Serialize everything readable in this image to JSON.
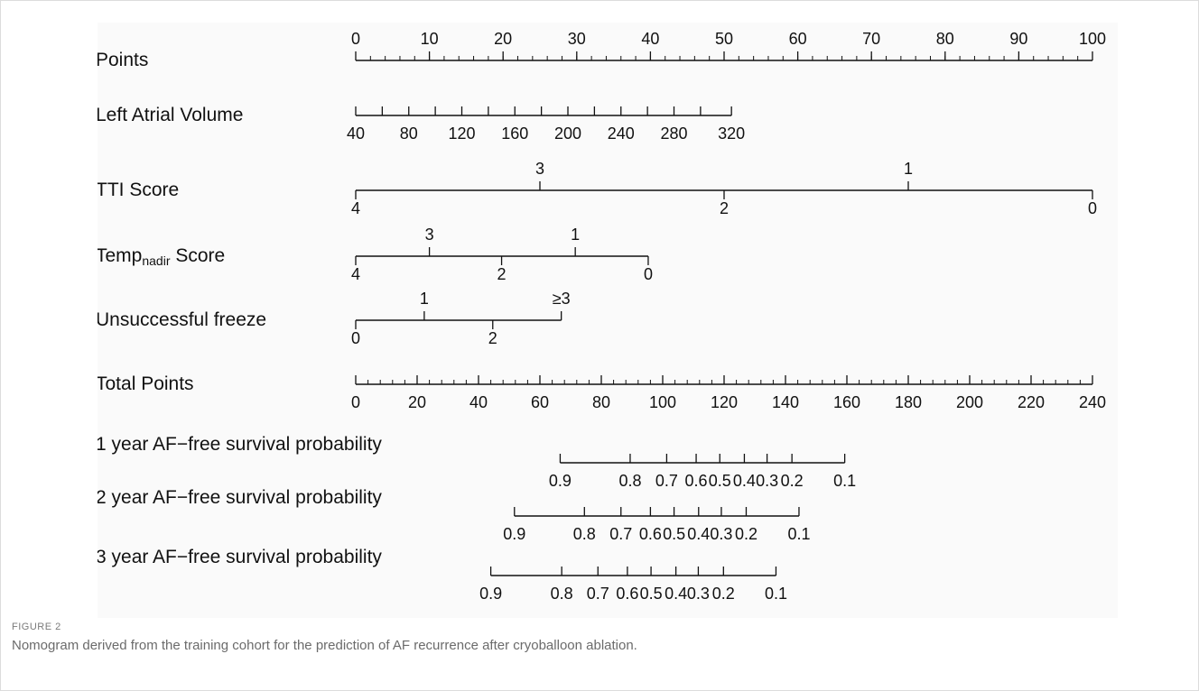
{
  "figure": {
    "label": "FIGURE 2",
    "caption": "Nomogram derived from the training cohort for the prediction of AF recurrence after cryoballoon ablation."
  },
  "chart_data": {
    "type": "nomogram",
    "title": "",
    "colors": {
      "line": "#111111",
      "panel": "#fafafa"
    },
    "scales": [
      {
        "id": "points",
        "label": "Points",
        "ticks": [
          {
            "label": "0",
            "points": 0,
            "side": "above"
          },
          {
            "label": "10",
            "points": 10,
            "side": "above"
          },
          {
            "label": "20",
            "points": 20,
            "side": "above"
          },
          {
            "label": "30",
            "points": 30,
            "side": "above"
          },
          {
            "label": "40",
            "points": 40,
            "side": "above"
          },
          {
            "label": "50",
            "points": 50,
            "side": "above"
          },
          {
            "label": "60",
            "points": 60,
            "side": "above"
          },
          {
            "label": "70",
            "points": 70,
            "side": "above"
          },
          {
            "label": "80",
            "points": 80,
            "side": "above"
          },
          {
            "label": "90",
            "points": 90,
            "side": "above"
          },
          {
            "label": "100",
            "points": 100,
            "side": "above"
          }
        ],
        "minor_step": 2,
        "range": [
          0,
          100
        ]
      },
      {
        "id": "left-atrial-volume",
        "label": "Left Atrial Volume",
        "ticks": [
          {
            "label": "40",
            "points": 0,
            "side": "below"
          },
          {
            "label": "",
            "points": 3.6,
            "side": "below"
          },
          {
            "label": "80",
            "points": 7.2,
            "side": "below"
          },
          {
            "label": "",
            "points": 10.8,
            "side": "below"
          },
          {
            "label": "120",
            "points": 14.4,
            "side": "below"
          },
          {
            "label": "",
            "points": 18.0,
            "side": "below"
          },
          {
            "label": "160",
            "points": 21.6,
            "side": "below"
          },
          {
            "label": "",
            "points": 25.2,
            "side": "below"
          },
          {
            "label": "200",
            "points": 28.8,
            "side": "below"
          },
          {
            "label": "",
            "points": 32.4,
            "side": "below"
          },
          {
            "label": "240",
            "points": 36.0,
            "side": "below"
          },
          {
            "label": "",
            "points": 39.6,
            "side": "below"
          },
          {
            "label": "280",
            "points": 43.2,
            "side": "below"
          },
          {
            "label": "",
            "points": 46.8,
            "side": "below"
          },
          {
            "label": "320",
            "points": 51.0,
            "side": "below"
          }
        ],
        "range": [
          0,
          51.0
        ]
      },
      {
        "id": "tti-score",
        "label": "TTI Score",
        "ticks": [
          {
            "label": "4",
            "points": 0,
            "side": "below"
          },
          {
            "label": "3",
            "points": 25,
            "side": "above"
          },
          {
            "label": "2",
            "points": 50,
            "side": "below"
          },
          {
            "label": "1",
            "points": 75,
            "side": "above"
          },
          {
            "label": "0",
            "points": 100,
            "side": "below"
          }
        ],
        "range": [
          0,
          100
        ]
      },
      {
        "id": "temp-nadir-score",
        "label": "Temp",
        "label_sub": "nadir",
        "label_suffix": " Score",
        "ticks": [
          {
            "label": "4",
            "points": 0,
            "side": "below"
          },
          {
            "label": "3",
            "points": 10,
            "side": "above"
          },
          {
            "label": "2",
            "points": 19.8,
            "side": "below"
          },
          {
            "label": "1",
            "points": 29.8,
            "side": "above"
          },
          {
            "label": "0",
            "points": 39.7,
            "side": "below"
          }
        ],
        "range": [
          0,
          39.7
        ]
      },
      {
        "id": "unsuccessful-freeze",
        "label": "Unsuccessful freeze",
        "ticks": [
          {
            "label": "0",
            "points": 0,
            "side": "below"
          },
          {
            "label": "1",
            "points": 9.3,
            "side": "above"
          },
          {
            "label": "2",
            "points": 18.6,
            "side": "below"
          },
          {
            "label": "≥3",
            "points": 27.9,
            "side": "above"
          }
        ],
        "range": [
          0,
          27.9
        ]
      },
      {
        "id": "total-points",
        "label": "Total Points",
        "ticks": [
          {
            "label": "0",
            "points": 0,
            "side": "below"
          },
          {
            "label": "20",
            "points": 20,
            "side": "below"
          },
          {
            "label": "40",
            "points": 40,
            "side": "below"
          },
          {
            "label": "60",
            "points": 60,
            "side": "below"
          },
          {
            "label": "80",
            "points": 80,
            "side": "below"
          },
          {
            "label": "100",
            "points": 100,
            "side": "below"
          },
          {
            "label": "120",
            "points": 120,
            "side": "below"
          },
          {
            "label": "140",
            "points": 140,
            "side": "below"
          },
          {
            "label": "160",
            "points": 160,
            "side": "below"
          },
          {
            "label": "180",
            "points": 180,
            "side": "below"
          },
          {
            "label": "200",
            "points": 200,
            "side": "below"
          },
          {
            "label": "220",
            "points": 220,
            "side": "below"
          },
          {
            "label": "240",
            "points": 240,
            "side": "below"
          }
        ],
        "minor_step": 4,
        "range": [
          0,
          240
        ]
      },
      {
        "id": "survival-1y",
        "label": "1 year AF−free survival probability",
        "ticks": [
          {
            "label": "0.9",
            "total_points": 66.6,
            "side": "below"
          },
          {
            "label": "0.8",
            "total_points": 89.4,
            "side": "below"
          },
          {
            "label": "0.7",
            "total_points": 101.3,
            "side": "below"
          },
          {
            "label": "0.6",
            "total_points": 110.9,
            "side": "below"
          },
          {
            "label": "0.5",
            "total_points": 118.6,
            "side": "below"
          },
          {
            "label": "0.4",
            "total_points": 126.6,
            "side": "below"
          },
          {
            "label": "0.3",
            "total_points": 134.0,
            "side": "below"
          },
          {
            "label": "0.2",
            "total_points": 142.1,
            "side": "below"
          },
          {
            "label": "0.1",
            "total_points": 159.3,
            "side": "below"
          }
        ],
        "range_total_points": [
          66.6,
          159.3
        ]
      },
      {
        "id": "survival-2y",
        "label": "2 year AF−free survival probability",
        "ticks": [
          {
            "label": "0.9",
            "total_points": 51.7,
            "side": "below"
          },
          {
            "label": "0.8",
            "total_points": 74.5,
            "side": "below"
          },
          {
            "label": "0.7",
            "total_points": 86.4,
            "side": "below"
          },
          {
            "label": "0.6",
            "total_points": 96.0,
            "side": "below"
          },
          {
            "label": "0.5",
            "total_points": 103.7,
            "side": "below"
          },
          {
            "label": "0.4",
            "total_points": 111.7,
            "side": "below"
          },
          {
            "label": "0.3",
            "total_points": 119.1,
            "side": "below"
          },
          {
            "label": "0.2",
            "total_points": 127.2,
            "side": "below"
          },
          {
            "label": "0.1",
            "total_points": 144.4,
            "side": "below"
          }
        ],
        "range_total_points": [
          51.7,
          144.4
        ]
      },
      {
        "id": "survival-3y",
        "label": "3 year AF−free survival probability",
        "ticks": [
          {
            "label": "0.9",
            "total_points": 44.0,
            "side": "below"
          },
          {
            "label": "0.8",
            "total_points": 67.1,
            "side": "below"
          },
          {
            "label": "0.7",
            "total_points": 78.9,
            "side": "below"
          },
          {
            "label": "0.6",
            "total_points": 88.5,
            "side": "below"
          },
          {
            "label": "0.5",
            "total_points": 96.2,
            "side": "below"
          },
          {
            "label": "0.4",
            "total_points": 104.3,
            "side": "below"
          },
          {
            "label": "0.3",
            "total_points": 111.6,
            "side": "below"
          },
          {
            "label": "0.2",
            "total_points": 119.8,
            "side": "below"
          },
          {
            "label": "0.1",
            "total_points": 136.9,
            "side": "below"
          }
        ],
        "range_total_points": [
          44.0,
          136.9
        ]
      }
    ]
  }
}
